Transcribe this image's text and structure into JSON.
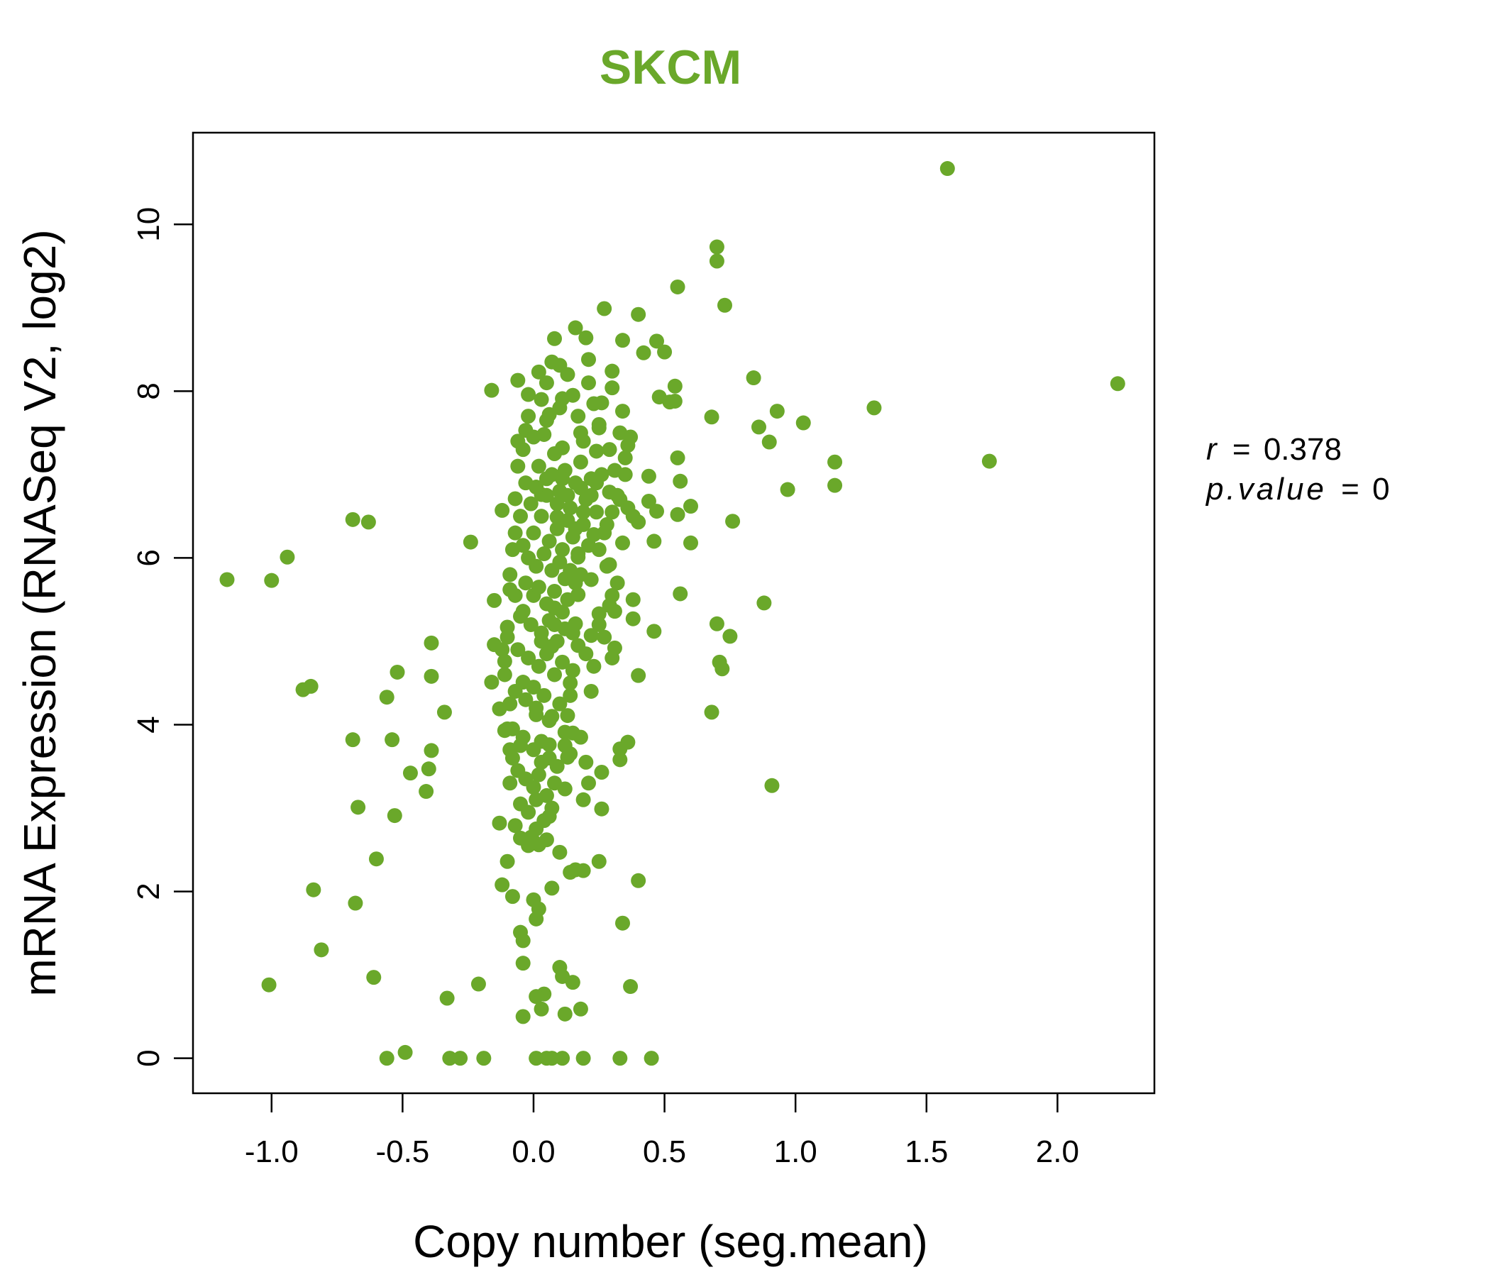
{
  "chart_data": {
    "type": "scatter",
    "title": "SKCM",
    "title_color": "#6aa82a",
    "point_color": "#6aa82a",
    "xlabel": "Copy number (seg.mean)",
    "ylabel": "mRNA Expression (RNASeq V2, log2)",
    "xlim": [
      -1.3,
      2.37
    ],
    "ylim": [
      -0.42,
      11.1
    ],
    "xticks": [
      -1.0,
      -0.5,
      0.0,
      0.5,
      1.0,
      1.5,
      2.0
    ],
    "xtick_labels": [
      "-1.0",
      "-0.5",
      "0.0",
      "0.5",
      "1.0",
      "1.5",
      "2.0"
    ],
    "yticks": [
      0,
      2,
      4,
      6,
      8,
      10
    ],
    "ytick_labels": [
      "0",
      "2",
      "4",
      "6",
      "8",
      "10"
    ],
    "grid": false,
    "legend": "none",
    "annotation": {
      "r_label": "r",
      "r_value": "0.378",
      "p_label": "p.value",
      "p_value": "0"
    },
    "points": [
      [
        1.58,
        10.67
      ],
      [
        0.7,
        9.73
      ],
      [
        0.7,
        9.56
      ],
      [
        0.55,
        9.25
      ],
      [
        0.73,
        9.03
      ],
      [
        2.23,
        8.09
      ],
      [
        1.74,
        7.16
      ],
      [
        1.15,
        7.15
      ],
      [
        1.15,
        6.87
      ],
      [
        1.3,
        7.8
      ],
      [
        1.03,
        7.62
      ],
      [
        0.93,
        7.76
      ],
      [
        0.9,
        7.39
      ],
      [
        0.97,
        6.82
      ],
      [
        0.86,
        7.57
      ],
      [
        0.84,
        8.16
      ],
      [
        0.88,
        5.46
      ],
      [
        0.91,
        3.27
      ],
      [
        0.76,
        6.44
      ],
      [
        0.75,
        5.06
      ],
      [
        0.71,
        4.75
      ],
      [
        0.72,
        4.67
      ],
      [
        0.7,
        5.21
      ],
      [
        0.68,
        7.69
      ],
      [
        0.68,
        4.15
      ],
      [
        0.6,
        6.18
      ],
      [
        0.6,
        6.62
      ],
      [
        0.56,
        6.92
      ],
      [
        0.55,
        6.52
      ],
      [
        0.56,
        5.57
      ],
      [
        0.55,
        7.2
      ],
      [
        0.54,
        8.06
      ],
      [
        0.54,
        7.88
      ],
      [
        0.52,
        7.87
      ],
      [
        0.5,
        8.47
      ],
      [
        0.47,
        8.6
      ],
      [
        0.48,
        7.93
      ],
      [
        0.46,
        6.2
      ],
      [
        0.47,
        6.56
      ],
      [
        0.46,
        5.12
      ],
      [
        0.44,
        6.98
      ],
      [
        0.44,
        6.68
      ],
      [
        0.42,
        8.46
      ],
      [
        0.4,
        8.92
      ],
      [
        0.4,
        6.43
      ],
      [
        0.38,
        5.5
      ],
      [
        0.38,
        5.27
      ],
      [
        0.4,
        4.59
      ],
      [
        0.36,
        3.79
      ],
      [
        0.35,
        7.0
      ],
      [
        0.34,
        6.18
      ],
      [
        0.33,
        3.71
      ],
      [
        0.33,
        3.58
      ],
      [
        0.34,
        8.61
      ],
      [
        0.34,
        7.76
      ],
      [
        0.32,
        6.75
      ],
      [
        0.36,
        7.35
      ],
      [
        0.3,
        8.24
      ],
      [
        0.3,
        8.04
      ],
      [
        0.29,
        6.79
      ],
      [
        0.29,
        5.92
      ],
      [
        0.31,
        5.36
      ],
      [
        0.31,
        4.92
      ],
      [
        0.3,
        4.8
      ],
      [
        0.29,
        5.43
      ],
      [
        0.27,
        8.99
      ],
      [
        0.26,
        7.86
      ],
      [
        0.25,
        7.56
      ],
      [
        0.25,
        5.33
      ],
      [
        0.24,
        7.28
      ],
      [
        0.23,
        6.28
      ],
      [
        0.22,
        5.74
      ],
      [
        0.22,
        5.07
      ],
      [
        0.22,
        4.4
      ],
      [
        0.21,
        8.38
      ],
      [
        0.2,
        8.64
      ],
      [
        0.18,
        7.5
      ],
      [
        0.18,
        6.84
      ],
      [
        0.17,
        6.01
      ],
      [
        0.17,
        5.56
      ],
      [
        0.16,
        8.76
      ],
      [
        0.16,
        5.21
      ],
      [
        0.15,
        4.65
      ],
      [
        0.14,
        4.35
      ],
      [
        0.13,
        4.11
      ],
      [
        0.12,
        3.91
      ],
      [
        0.13,
        3.61
      ],
      [
        0.12,
        3.23
      ],
      [
        0.11,
        7.91
      ],
      [
        0.11,
        7.32
      ],
      [
        0.1,
        8.31
      ],
      [
        0.09,
        6.49
      ],
      [
        0.08,
        8.63
      ],
      [
        0.08,
        5.4
      ],
      [
        0.07,
        4.94
      ],
      [
        0.06,
        7.72
      ],
      [
        0.06,
        3.76
      ],
      [
        0.05,
        8.1
      ],
      [
        0.04,
        7.48
      ],
      [
        0.03,
        6.76
      ],
      [
        0.03,
        5.0
      ],
      [
        0.02,
        8.23
      ],
      [
        0.01,
        4.12
      ],
      [
        0.0,
        4.45
      ],
      [
        -0.01,
        6.65
      ],
      [
        -0.02,
        7.96
      ],
      [
        -0.03,
        7.53
      ],
      [
        -0.04,
        5.36
      ],
      [
        -0.04,
        4.51
      ],
      [
        -0.05,
        3.75
      ],
      [
        -0.06,
        8.13
      ],
      [
        -0.06,
        7.4
      ],
      [
        -0.07,
        6.71
      ],
      [
        -0.08,
        6.1
      ],
      [
        -0.09,
        5.62
      ],
      [
        -0.1,
        5.17
      ],
      [
        -0.11,
        4.76
      ],
      [
        -0.11,
        3.93
      ],
      [
        -0.12,
        6.57
      ],
      [
        -0.13,
        4.19
      ],
      [
        -0.15,
        5.49
      ],
      [
        -0.15,
        4.96
      ],
      [
        -0.16,
        4.51
      ],
      [
        -0.16,
        8.01
      ],
      [
        -0.24,
        6.19
      ],
      [
        -0.34,
        4.15
      ],
      [
        -0.39,
        4.98
      ],
      [
        -0.39,
        4.58
      ],
      [
        -0.39,
        3.69
      ],
      [
        -0.4,
        3.47
      ],
      [
        -0.41,
        3.2
      ],
      [
        -0.47,
        3.42
      ],
      [
        -0.52,
        4.63
      ],
      [
        -0.53,
        2.91
      ],
      [
        -0.54,
        3.82
      ],
      [
        -0.56,
        4.33
      ],
      [
        -0.6,
        2.39
      ],
      [
        -0.63,
        6.43
      ],
      [
        -0.67,
        3.01
      ],
      [
        -0.69,
        3.82
      ],
      [
        -0.69,
        6.46
      ],
      [
        -0.85,
        4.46
      ],
      [
        -0.88,
        4.42
      ],
      [
        -0.94,
        6.01
      ],
      [
        -1.0,
        5.73
      ],
      [
        -1.17,
        5.74
      ],
      [
        0.26,
        3.43
      ],
      [
        0.26,
        2.99
      ],
      [
        0.25,
        2.36
      ],
      [
        0.19,
        2.25
      ],
      [
        0.16,
        2.26
      ],
      [
        0.14,
        2.23
      ],
      [
        0.1,
        2.47
      ],
      [
        0.07,
        2.04
      ],
      [
        0.05,
        2.62
      ],
      [
        0.02,
        2.56
      ],
      [
        0.0,
        2.6
      ],
      [
        -0.02,
        2.55
      ],
      [
        -0.05,
        2.64
      ],
      [
        -0.07,
        2.79
      ],
      [
        -0.1,
        2.36
      ],
      [
        -0.13,
        2.82
      ],
      [
        -0.12,
        2.08
      ],
      [
        -0.08,
        1.94
      ],
      [
        -0.05,
        1.51
      ],
      [
        -0.04,
        1.41
      ],
      [
        -0.04,
        1.14
      ],
      [
        0.0,
        1.9
      ],
      [
        0.02,
        1.79
      ],
      [
        0.01,
        1.67
      ],
      [
        0.1,
        1.09
      ],
      [
        0.11,
        0.98
      ],
      [
        0.15,
        0.91
      ],
      [
        0.04,
        0.77
      ],
      [
        0.01,
        0.74
      ],
      [
        0.03,
        0.59
      ],
      [
        -0.04,
        0.5
      ],
      [
        0.12,
        0.53
      ],
      [
        0.18,
        0.59
      ],
      [
        0.37,
        0.86
      ],
      [
        0.34,
        1.62
      ],
      [
        0.4,
        2.13
      ],
      [
        -0.21,
        0.89
      ],
      [
        -0.33,
        0.72
      ],
      [
        -0.61,
        0.97
      ],
      [
        -0.81,
        1.3
      ],
      [
        -1.01,
        0.88
      ],
      [
        -0.68,
        1.86
      ],
      [
        -0.84,
        2.02
      ],
      [
        -0.56,
        0.0
      ],
      [
        -0.49,
        0.07
      ],
      [
        -0.32,
        0.0
      ],
      [
        -0.28,
        0.0
      ],
      [
        -0.19,
        0.0
      ],
      [
        0.01,
        0.0
      ],
      [
        0.05,
        0.0
      ],
      [
        0.07,
        0.0
      ],
      [
        0.11,
        0.0
      ],
      [
        0.19,
        0.0
      ],
      [
        0.33,
        0.0
      ],
      [
        0.45,
        0.0
      ],
      [
        0.02,
        7.1
      ],
      [
        0.05,
        6.95
      ],
      [
        0.08,
        7.25
      ],
      [
        0.1,
        6.8
      ],
      [
        0.12,
        7.05
      ],
      [
        0.14,
        6.6
      ],
      [
        0.16,
        6.9
      ],
      [
        0.18,
        7.15
      ],
      [
        0.2,
        6.7
      ],
      [
        0.22,
        6.95
      ],
      [
        0.24,
        6.55
      ],
      [
        0.26,
        7.0
      ],
      [
        0.28,
        6.4
      ],
      [
        0.0,
        6.3
      ],
      [
        0.03,
        6.5
      ],
      [
        0.06,
        6.2
      ],
      [
        0.09,
        6.35
      ],
      [
        0.11,
        6.1
      ],
      [
        0.13,
        6.45
      ],
      [
        0.15,
        6.25
      ],
      [
        0.17,
        6.05
      ],
      [
        0.19,
        6.4
      ],
      [
        0.21,
        6.15
      ],
      [
        -0.02,
        6.0
      ],
      [
        0.01,
        5.9
      ],
      [
        0.04,
        6.05
      ],
      [
        0.07,
        5.85
      ],
      [
        0.1,
        5.95
      ],
      [
        0.12,
        5.75
      ],
      [
        0.14,
        5.85
      ],
      [
        0.16,
        5.7
      ],
      [
        0.18,
        5.8
      ],
      [
        -0.03,
        5.7
      ],
      [
        0.0,
        5.55
      ],
      [
        0.02,
        5.65
      ],
      [
        0.05,
        5.45
      ],
      [
        0.08,
        5.6
      ],
      [
        0.11,
        5.35
      ],
      [
        0.13,
        5.5
      ],
      [
        -0.05,
        5.3
      ],
      [
        -0.01,
        5.2
      ],
      [
        0.03,
        5.1
      ],
      [
        0.06,
        5.25
      ],
      [
        0.09,
        5.0
      ],
      [
        0.12,
        5.15
      ],
      [
        -0.06,
        4.9
      ],
      [
        -0.02,
        4.8
      ],
      [
        0.02,
        4.7
      ],
      [
        0.05,
        4.85
      ],
      [
        0.08,
        4.6
      ],
      [
        0.11,
        4.75
      ],
      [
        0.14,
        4.5
      ],
      [
        -0.07,
        4.4
      ],
      [
        -0.03,
        4.3
      ],
      [
        0.01,
        4.2
      ],
      [
        0.04,
        4.35
      ],
      [
        0.07,
        4.1
      ],
      [
        0.1,
        4.25
      ],
      [
        -0.08,
        3.95
      ],
      [
        -0.04,
        3.85
      ],
      [
        0.0,
        3.7
      ],
      [
        0.03,
        3.8
      ],
      [
        0.06,
        3.6
      ],
      [
        0.09,
        3.5
      ],
      [
        0.12,
        3.75
      ],
      [
        -0.06,
        3.45
      ],
      [
        -0.03,
        3.35
      ],
      [
        0.0,
        3.25
      ],
      [
        0.02,
        3.4
      ],
      [
        0.05,
        3.15
      ],
      [
        0.08,
        3.3
      ],
      [
        -0.05,
        3.05
      ],
      [
        -0.02,
        2.95
      ],
      [
        0.01,
        3.1
      ],
      [
        0.04,
        2.85
      ],
      [
        0.07,
        3.0
      ],
      [
        -0.08,
        3.6
      ],
      [
        -0.09,
        3.7
      ],
      [
        0.15,
        3.9
      ],
      [
        0.18,
        3.85
      ],
      [
        0.2,
        3.55
      ],
      [
        0.21,
        3.3
      ],
      [
        0.19,
        3.1
      ],
      [
        0.15,
        5.1
      ],
      [
        0.17,
        4.95
      ],
      [
        0.2,
        4.85
      ],
      [
        0.23,
        4.7
      ],
      [
        0.25,
        5.2
      ],
      [
        0.27,
        5.05
      ],
      [
        0.3,
        5.55
      ],
      [
        0.32,
        5.7
      ],
      [
        0.28,
        5.9
      ],
      [
        0.25,
        6.1
      ],
      [
        0.27,
        6.3
      ],
      [
        0.3,
        6.55
      ],
      [
        0.33,
        6.7
      ],
      [
        0.36,
        6.6
      ],
      [
        0.38,
        6.5
      ],
      [
        0.31,
        7.05
      ],
      [
        0.29,
        7.3
      ],
      [
        0.33,
        7.5
      ],
      [
        0.35,
        7.2
      ],
      [
        0.37,
        7.45
      ],
      [
        0.25,
        7.6
      ],
      [
        0.23,
        7.85
      ],
      [
        0.21,
        8.1
      ],
      [
        0.19,
        7.4
      ],
      [
        0.17,
        7.7
      ],
      [
        0.15,
        7.95
      ],
      [
        0.13,
        8.2
      ],
      [
        0.1,
        7.8
      ],
      [
        0.07,
        8.35
      ],
      [
        0.05,
        7.65
      ],
      [
        0.03,
        7.9
      ],
      [
        0.0,
        7.45
      ],
      [
        -0.02,
        7.7
      ],
      [
        -0.04,
        7.3
      ],
      [
        -0.06,
        7.1
      ],
      [
        -0.03,
        6.9
      ],
      [
        -0.05,
        6.5
      ],
      [
        -0.07,
        6.3
      ],
      [
        -0.04,
        6.15
      ],
      [
        -0.09,
        5.8
      ],
      [
        -0.07,
        5.55
      ],
      [
        -0.1,
        5.05
      ],
      [
        -0.12,
        4.9
      ],
      [
        -0.11,
        4.6
      ],
      [
        -0.09,
        4.25
      ],
      [
        -0.1,
        3.95
      ],
      [
        -0.09,
        3.3
      ],
      [
        0.16,
        6.35
      ],
      [
        0.19,
        6.55
      ],
      [
        0.22,
        6.75
      ],
      [
        0.24,
        6.9
      ],
      [
        0.07,
        7.0
      ],
      [
        0.09,
        6.65
      ],
      [
        0.11,
        6.95
      ],
      [
        0.05,
        6.75
      ],
      [
        0.01,
        6.85
      ],
      [
        0.13,
        6.75
      ],
      [
        0.08,
        5.2
      ],
      [
        0.06,
        4.05
      ],
      [
        0.14,
        3.65
      ],
      [
        0.03,
        3.55
      ],
      [
        0.01,
        2.75
      ],
      [
        0.06,
        2.9
      ],
      [
        -0.01,
        2.65
      ]
    ]
  }
}
